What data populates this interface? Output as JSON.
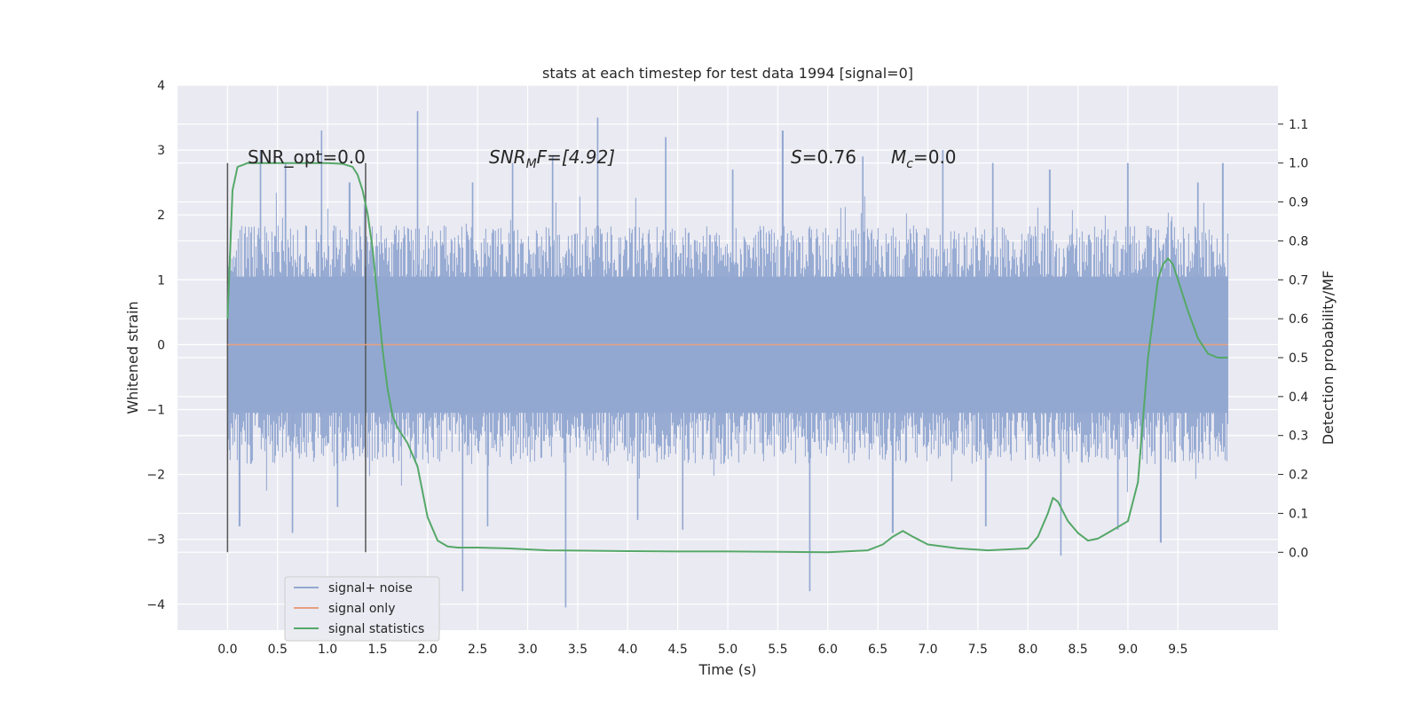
{
  "chart_data": {
    "type": "line",
    "title": "stats at each timestep for test data 1994 [signal=0]",
    "xlabel": "Time (s)",
    "ylabel": "Whitened strain",
    "y2label": "Detection probability/MF",
    "xlim": [
      -0.5,
      10.5
    ],
    "ylim": [
      -4.4,
      4.0
    ],
    "y2lim": [
      -0.2,
      1.2
    ],
    "x_ticks": [
      0.0,
      0.5,
      1.0,
      1.5,
      2.0,
      2.5,
      3.0,
      3.5,
      4.0,
      4.5,
      5.0,
      5.5,
      6.0,
      6.5,
      7.0,
      7.5,
      8.0,
      8.5,
      9.0,
      9.5
    ],
    "x_tick_labels": [
      "0.0",
      "0.5",
      "1.0",
      "1.5",
      "2.0",
      "2.5",
      "3.0",
      "3.5",
      "4.0",
      "4.5",
      "5.0",
      "5.5",
      "6.0",
      "6.5",
      "7.0",
      "7.5",
      "8.0",
      "8.5",
      "9.0",
      "9.5"
    ],
    "y_ticks": [
      -4,
      -3,
      -2,
      -1,
      0,
      1,
      2,
      3,
      4
    ],
    "y_tick_labels": [
      "−4",
      "−3",
      "−2",
      "−1",
      "0",
      "1",
      "2",
      "3",
      "4"
    ],
    "y2_ticks": [
      0.0,
      0.1,
      0.2,
      0.3,
      0.4,
      0.5,
      0.6,
      0.7,
      0.8,
      0.9,
      1.0,
      1.1
    ],
    "y2_tick_labels": [
      "0.0",
      "0.1",
      "0.2",
      "0.3",
      "0.4",
      "0.5",
      "0.6",
      "0.7",
      "0.8",
      "0.9",
      "1.0",
      "1.1"
    ],
    "grid": true,
    "legend_position": "lower-left",
    "vertical_markers": {
      "x": [
        0.0,
        1.38
      ],
      "y_range": [
        -3.2,
        2.8
      ]
    },
    "annotations": {
      "snr_opt": "SNR_opt=0.0",
      "snr_mf": {
        "main": "SNR",
        "sub": "M",
        "rest": "F=[4.92]"
      },
      "s_stat": {
        "main": "S",
        "rest": "=0.76"
      },
      "mc_stat": {
        "main": "M",
        "sub": "c",
        "rest": "=0.0"
      }
    },
    "series": [
      {
        "name": "signal+ noise",
        "color": "#92a8d1",
        "axis": "left",
        "render": "noise_band",
        "x_range": [
          0.0,
          10.0
        ],
        "band_core": 1.0,
        "band_typical": 1.6,
        "peaks_up": [
          [
            0.33,
            3.0
          ],
          [
            0.58,
            2.8
          ],
          [
            0.94,
            3.3
          ],
          [
            1.22,
            2.5
          ],
          [
            1.9,
            3.6
          ],
          [
            2.45,
            2.5
          ],
          [
            2.85,
            2.8
          ],
          [
            3.25,
            2.9
          ],
          [
            3.7,
            3.5
          ],
          [
            4.38,
            3.2
          ],
          [
            5.05,
            2.7
          ],
          [
            5.55,
            3.3
          ],
          [
            6.35,
            2.9
          ],
          [
            7.15,
            3.0
          ],
          [
            7.65,
            2.8
          ],
          [
            8.22,
            2.7
          ],
          [
            9.0,
            2.8
          ],
          [
            9.7,
            2.5
          ],
          [
            9.95,
            2.8
          ]
        ],
        "peaks_down": [
          [
            0.12,
            -2.8
          ],
          [
            0.65,
            -2.9
          ],
          [
            1.1,
            -2.5
          ],
          [
            2.35,
            -3.8
          ],
          [
            2.6,
            -2.8
          ],
          [
            3.38,
            -4.05
          ],
          [
            4.1,
            -2.7
          ],
          [
            4.55,
            -2.85
          ],
          [
            5.82,
            -3.8
          ],
          [
            6.65,
            -2.9
          ],
          [
            7.58,
            -2.8
          ],
          [
            8.33,
            -3.25
          ],
          [
            8.9,
            -2.85
          ],
          [
            9.33,
            -3.05
          ]
        ]
      },
      {
        "name": "signal only",
        "color": "#e8a07e",
        "axis": "left",
        "x": [
          0.0,
          10.0
        ],
        "y": [
          0.0,
          0.0
        ]
      },
      {
        "name": "signal statistics",
        "color": "#55a868",
        "axis": "right",
        "x": [
          0.0,
          0.05,
          0.1,
          0.15,
          0.2,
          0.3,
          0.5,
          0.8,
          1.0,
          1.15,
          1.25,
          1.3,
          1.35,
          1.4,
          1.45,
          1.5,
          1.55,
          1.6,
          1.65,
          1.7,
          1.8,
          1.9,
          2.0,
          2.1,
          2.2,
          2.3,
          2.5,
          2.8,
          3.2,
          3.6,
          4.0,
          4.5,
          5.0,
          5.5,
          6.0,
          6.4,
          6.55,
          6.65,
          6.75,
          6.85,
          7.0,
          7.3,
          7.6,
          8.0,
          8.1,
          8.2,
          8.25,
          8.3,
          8.4,
          8.5,
          8.6,
          8.7,
          8.8,
          9.0,
          9.1,
          9.2,
          9.3,
          9.35,
          9.4,
          9.45,
          9.5,
          9.6,
          9.7,
          9.8,
          9.9,
          10.0
        ],
        "y": [
          0.6,
          0.93,
          0.99,
          0.995,
          1.0,
          1.0,
          1.0,
          1.0,
          1.0,
          0.998,
          0.99,
          0.97,
          0.93,
          0.87,
          0.78,
          0.65,
          0.52,
          0.42,
          0.35,
          0.32,
          0.28,
          0.22,
          0.09,
          0.03,
          0.015,
          0.012,
          0.012,
          0.01,
          0.005,
          0.004,
          0.003,
          0.002,
          0.002,
          0.001,
          0.0,
          0.005,
          0.02,
          0.04,
          0.055,
          0.04,
          0.02,
          0.01,
          0.005,
          0.01,
          0.04,
          0.1,
          0.14,
          0.13,
          0.08,
          0.05,
          0.03,
          0.035,
          0.05,
          0.08,
          0.18,
          0.5,
          0.7,
          0.74,
          0.755,
          0.74,
          0.7,
          0.62,
          0.55,
          0.51,
          0.5,
          0.5
        ]
      }
    ]
  }
}
